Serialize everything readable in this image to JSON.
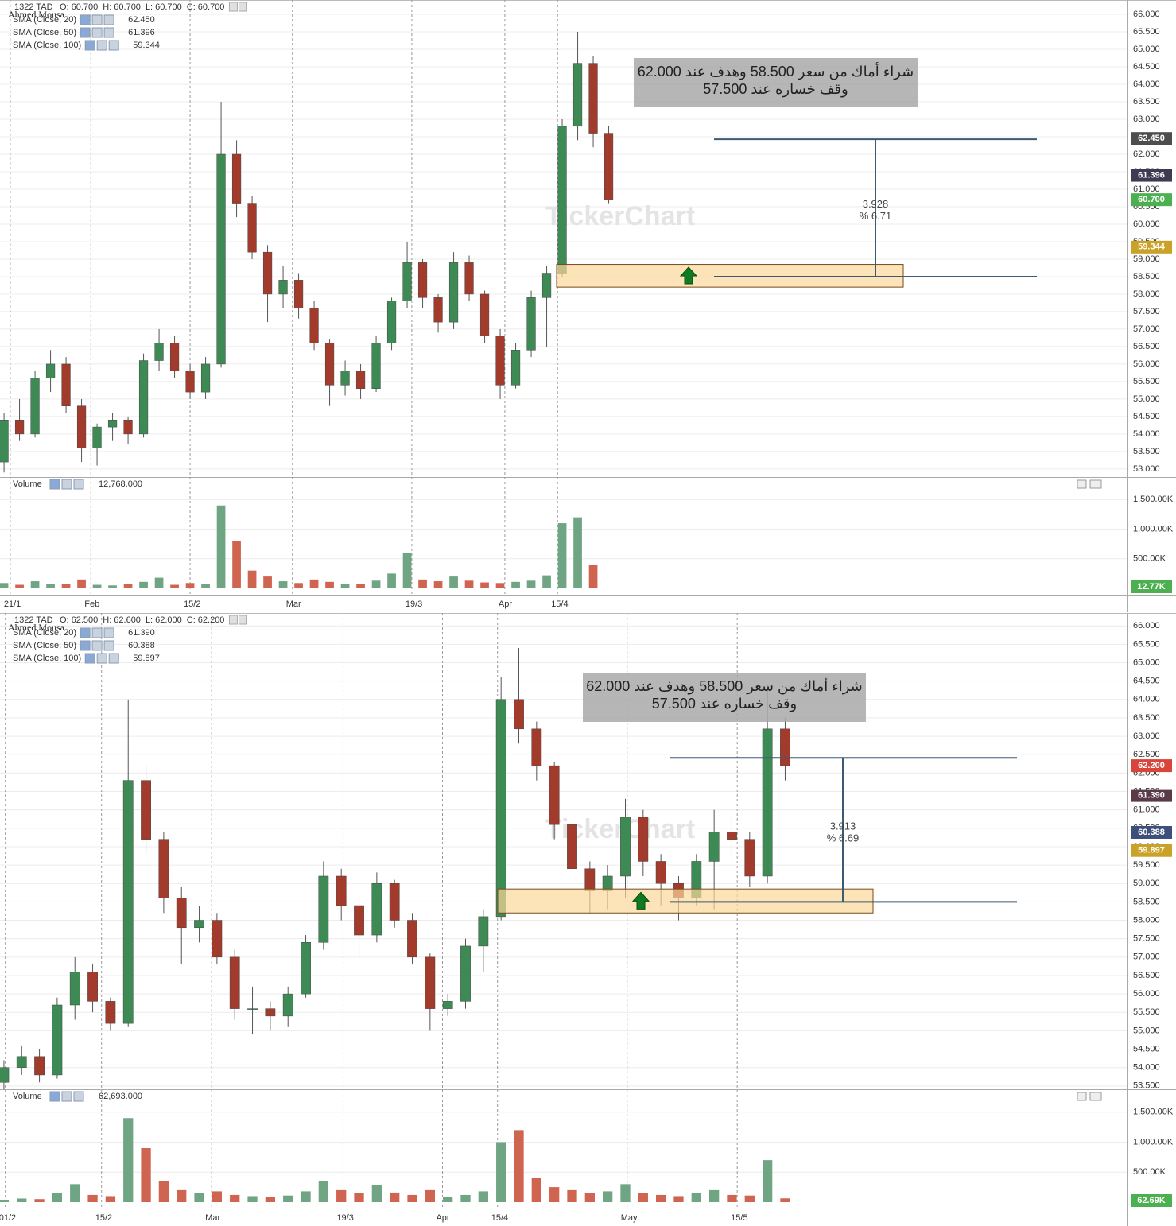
{
  "chart_data": [
    {
      "type": "candlestick",
      "symbol": "1322 TAD",
      "author": "Ahmed Mousa",
      "watermark": "TickerChart",
      "header_color": "#2e8b3e",
      "header": [
        {
          "name": "O:",
          "value": 60.7,
          "label": "60.700"
        },
        {
          "name": "H:",
          "value": 60.7,
          "label": "60.700"
        },
        {
          "name": "L:",
          "value": 60.7,
          "label": "60.700"
        },
        {
          "name": "C:",
          "value": 60.7,
          "label": "60.700"
        }
      ],
      "indicators": [
        {
          "name": "SMA (Close, 20)",
          "value": 62.45,
          "label": "62.450",
          "color": "#4d4d4d"
        },
        {
          "name": "SMA (Close, 50)",
          "value": 61.396,
          "label": "61.396",
          "color": "#3f3a52"
        },
        {
          "name": "SMA (Close, 100)",
          "value": 59.344,
          "label": "59.344",
          "color": "#c9a227"
        }
      ],
      "last_close": {
        "value": 60.7,
        "label": "60.700",
        "color": "#4caf50"
      },
      "annotation": [
        "شراء أماك من سعر 58.500 وهدف عند 62.000",
        "وقف خساره عند 57.500"
      ],
      "entry": 58.5,
      "target": 62.428,
      "zone": [
        58.2,
        58.85
      ],
      "measure": {
        "diff": {
          "value": 3.928,
          "label": "3.928"
        },
        "percent": {
          "value": 6.71,
          "label": "% 6.71"
        }
      },
      "open": [
        53.2,
        54.4,
        54.0,
        55.6,
        56.0,
        54.8,
        53.6,
        54.2,
        54.4,
        54.0,
        56.1,
        56.6,
        55.8,
        55.2,
        56.0,
        62.0,
        60.6,
        59.2,
        58.0,
        58.4,
        57.6,
        56.6,
        55.4,
        55.8,
        55.3,
        56.6,
        57.8,
        58.9,
        57.9,
        57.2,
        58.9,
        58.0,
        56.8,
        55.4,
        56.4,
        57.9,
        58.6,
        62.8,
        64.6,
        62.6
      ],
      "high": [
        54.6,
        55.0,
        55.8,
        56.4,
        56.2,
        55.0,
        54.3,
        54.6,
        54.5,
        56.3,
        57.0,
        56.8,
        56.0,
        56.2,
        63.5,
        62.4,
        60.8,
        59.4,
        58.8,
        58.6,
        57.8,
        56.7,
        56.1,
        56.0,
        56.8,
        57.9,
        59.5,
        59.0,
        58.0,
        59.2,
        59.1,
        58.1,
        57.0,
        56.6,
        58.1,
        58.8,
        63.0,
        65.5,
        64.8,
        62.8
      ],
      "low": [
        52.9,
        53.8,
        53.9,
        55.2,
        54.6,
        53.2,
        53.1,
        53.8,
        53.7,
        53.9,
        55.8,
        55.6,
        55.0,
        55.0,
        55.9,
        60.2,
        59.0,
        57.2,
        57.6,
        57.3,
        56.4,
        54.8,
        55.1,
        55.0,
        55.2,
        56.4,
        57.6,
        57.6,
        56.9,
        57.0,
        57.8,
        56.6,
        55.0,
        55.3,
        56.2,
        56.5,
        58.5,
        62.4,
        62.2,
        60.6
      ],
      "close": [
        54.4,
        54.0,
        55.6,
        56.0,
        54.8,
        53.6,
        54.2,
        54.4,
        54.0,
        56.1,
        56.6,
        55.8,
        55.2,
        56.0,
        62.0,
        60.6,
        59.2,
        58.0,
        58.4,
        57.6,
        56.6,
        55.4,
        55.8,
        55.3,
        56.6,
        57.8,
        58.9,
        57.9,
        57.2,
        58.9,
        58.0,
        56.8,
        55.4,
        56.4,
        57.9,
        58.6,
        62.8,
        64.6,
        62.6,
        60.7
      ],
      "volume": [
        90000,
        60000,
        120000,
        80000,
        70000,
        150000,
        60000,
        50000,
        70000,
        110000,
        180000,
        60000,
        90000,
        70000,
        1400000,
        800000,
        300000,
        200000,
        120000,
        90000,
        150000,
        110000,
        80000,
        70000,
        130000,
        250000,
        600000,
        150000,
        120000,
        200000,
        130000,
        100000,
        90000,
        110000,
        130000,
        220000,
        1100000,
        1200000,
        400000,
        12768
      ],
      "volume_title": "Volume",
      "volume_last": {
        "value": 12768,
        "label": "12,768.000"
      },
      "volume_tag": {
        "value": 12768,
        "label": "12.77K"
      },
      "xlim": [
        -0.26,
        72.46
      ],
      "xticks": [
        {
          "value": 0.4,
          "label": "21/1"
        },
        {
          "value": 5.6,
          "label": "Feb"
        },
        {
          "value": 12.0,
          "label": "15/2"
        },
        {
          "value": 18.6,
          "label": "Mar"
        },
        {
          "value": 26.3,
          "label": "19/3"
        },
        {
          "value": 32.3,
          "label": "Apr"
        },
        {
          "value": 35.7,
          "label": "15/4"
        }
      ],
      "ylim": [
        52.77,
        66.41
      ],
      "yticks": [
        {
          "value": 53,
          "label": "53.000"
        },
        {
          "value": 53.5,
          "label": "53.500"
        },
        {
          "value": 54,
          "label": "54.000"
        },
        {
          "value": 54.5,
          "label": "54.500"
        },
        {
          "value": 55,
          "label": "55.000"
        },
        {
          "value": 55.5,
          "label": "55.500"
        },
        {
          "value": 56,
          "label": "56.000"
        },
        {
          "value": 56.5,
          "label": "56.500"
        },
        {
          "value": 57,
          "label": "57.000"
        },
        {
          "value": 57.5,
          "label": "57.500"
        },
        {
          "value": 58,
          "label": "58.000"
        },
        {
          "value": 58.5,
          "label": "58.500"
        },
        {
          "value": 59,
          "label": "59.000"
        },
        {
          "value": 59.5,
          "label": "59.500"
        },
        {
          "value": 60,
          "label": "60.000"
        },
        {
          "value": 60.5,
          "label": "60.500"
        },
        {
          "value": 61,
          "label": "61.000"
        },
        {
          "value": 61.5,
          "label": "61.500"
        },
        {
          "value": 62,
          "label": "62.000"
        },
        {
          "value": 62.5,
          "label": "62.500"
        },
        {
          "value": 63,
          "label": "63.000"
        },
        {
          "value": 63.5,
          "label": "63.500"
        },
        {
          "value": 64,
          "label": "64.000"
        },
        {
          "value": 64.5,
          "label": "64.500"
        },
        {
          "value": 65,
          "label": "65.000"
        },
        {
          "value": 65.5,
          "label": "65.500"
        },
        {
          "value": 66,
          "label": "66.000"
        }
      ],
      "volume_ylim": [
        0,
        1880000
      ],
      "volume_yticks": [
        {
          "value": 500000,
          "label": "500.00K"
        },
        {
          "value": 1000000,
          "label": "1,000.00K"
        },
        {
          "value": 1500000,
          "label": "1,500.00K"
        }
      ]
    },
    {
      "type": "candlestick",
      "symbol": "1322 TAD",
      "author": "Ahmed Mousa",
      "watermark": "TickerChart",
      "header_color": "#c0392b",
      "header": [
        {
          "name": "O:",
          "value": 62.5,
          "label": "62.500"
        },
        {
          "name": "H:",
          "value": 62.6,
          "label": "62.600"
        },
        {
          "name": "L:",
          "value": 62,
          "label": "62.000"
        },
        {
          "name": "C:",
          "value": 62.2,
          "label": "62.200"
        }
      ],
      "indicators": [
        {
          "name": "SMA (Close, 20)",
          "value": 61.39,
          "label": "61.390",
          "color": "#5a3a48"
        },
        {
          "name": "SMA (Close, 50)",
          "value": 60.388,
          "label": "60.388",
          "color": "#3d4f7a"
        },
        {
          "name": "SMA (Close, 100)",
          "value": 59.897,
          "label": "59.897",
          "color": "#c9a227"
        }
      ],
      "last_close": {
        "value": 62.2,
        "label": "62.200",
        "color": "#d9453a"
      },
      "annotation": [
        "شراء أماك من سعر 58.500 وهدف عند 62.000",
        "وقف خساره عند 57.500"
      ],
      "entry": 58.5,
      "target": 62.413,
      "zone": [
        58.2,
        58.85
      ],
      "measure": {
        "diff": {
          "value": 3.913,
          "label": "3.913"
        },
        "percent": {
          "value": 6.69,
          "label": "% 6.69"
        }
      },
      "open": [
        53.6,
        54.0,
        54.3,
        53.8,
        55.7,
        56.6,
        55.8,
        55.2,
        61.8,
        60.2,
        58.6,
        57.8,
        58.0,
        57.0,
        55.6,
        55.6,
        55.4,
        56.0,
        57.4,
        59.2,
        58.4,
        57.6,
        59.0,
        58.0,
        57.0,
        55.6,
        55.8,
        57.3,
        58.1,
        64.0,
        63.2,
        62.2,
        60.6,
        59.4,
        58.8,
        59.2,
        60.8,
        59.6,
        59.0,
        58.6,
        59.6,
        60.4,
        60.2,
        59.2,
        63.2
      ],
      "high": [
        54.2,
        54.6,
        54.5,
        55.9,
        57.0,
        56.8,
        55.9,
        64.0,
        62.2,
        60.4,
        58.9,
        58.4,
        58.2,
        57.2,
        56.2,
        55.8,
        56.2,
        57.6,
        59.6,
        59.4,
        58.6,
        59.3,
        59.1,
        58.2,
        57.1,
        56.0,
        57.5,
        58.3,
        64.6,
        65.4,
        63.4,
        62.3,
        60.7,
        59.6,
        59.5,
        61.3,
        61.0,
        59.8,
        59.2,
        59.8,
        61.0,
        61.0,
        60.4,
        64.4,
        63.5
      ],
      "low": [
        53.4,
        53.8,
        53.6,
        53.7,
        55.3,
        55.5,
        55.0,
        55.1,
        59.8,
        58.2,
        56.8,
        57.4,
        56.8,
        55.3,
        54.9,
        55.0,
        55.1,
        55.9,
        57.2,
        58.0,
        57.0,
        57.4,
        57.8,
        56.8,
        55.0,
        55.4,
        55.6,
        56.6,
        58.0,
        62.8,
        61.8,
        60.2,
        59.0,
        58.2,
        58.3,
        58.6,
        59.2,
        58.4,
        58.0,
        58.4,
        58.3,
        59.6,
        58.9,
        59.0,
        61.8
      ],
      "close": [
        54.0,
        54.3,
        53.8,
        55.7,
        56.6,
        55.8,
        55.2,
        61.8,
        60.2,
        58.6,
        57.8,
        58.0,
        57.0,
        55.6,
        55.6,
        55.4,
        56.0,
        57.4,
        59.2,
        58.4,
        57.6,
        59.0,
        58.0,
        57.0,
        55.6,
        55.8,
        57.3,
        58.1,
        64.0,
        63.2,
        62.2,
        60.6,
        59.4,
        58.8,
        59.2,
        60.8,
        59.6,
        59.0,
        58.6,
        59.6,
        60.4,
        60.2,
        59.2,
        63.2,
        62.2
      ],
      "volume": [
        40000,
        60000,
        50000,
        150000,
        300000,
        120000,
        100000,
        1400000,
        900000,
        350000,
        200000,
        150000,
        180000,
        120000,
        100000,
        90000,
        110000,
        180000,
        350000,
        200000,
        150000,
        280000,
        160000,
        120000,
        200000,
        80000,
        120000,
        180000,
        1000000,
        1200000,
        400000,
        250000,
        200000,
        150000,
        180000,
        300000,
        150000,
        120000,
        100000,
        150000,
        200000,
        120000,
        110000,
        700000,
        62693
      ],
      "volume_title": "Volume",
      "volume_last": {
        "value": 62693,
        "label": "62,693.000"
      },
      "volume_tag": {
        "value": 62693,
        "label": "62.69K"
      },
      "xlim": [
        -0.22,
        63.28
      ],
      "xticks": [
        {
          "value": 0.08,
          "label": "01/2"
        },
        {
          "value": 5.5,
          "label": "15/2"
        },
        {
          "value": 11.7,
          "label": "Mar"
        },
        {
          "value": 19.1,
          "label": "19/3"
        },
        {
          "value": 24.7,
          "label": "Apr"
        },
        {
          "value": 27.8,
          "label": "15/4"
        },
        {
          "value": 35.1,
          "label": "May"
        },
        {
          "value": 41.3,
          "label": "15/5"
        }
      ],
      "ylim": [
        53.41,
        66.35
      ],
      "yticks": [
        {
          "value": 53.5,
          "label": "53.500"
        },
        {
          "value": 54,
          "label": "54.000"
        },
        {
          "value": 54.5,
          "label": "54.500"
        },
        {
          "value": 55,
          "label": "55.000"
        },
        {
          "value": 55.5,
          "label": "55.500"
        },
        {
          "value": 56,
          "label": "56.000"
        },
        {
          "value": 56.5,
          "label": "56.500"
        },
        {
          "value": 57,
          "label": "57.000"
        },
        {
          "value": 57.5,
          "label": "57.500"
        },
        {
          "value": 58,
          "label": "58.000"
        },
        {
          "value": 58.5,
          "label": "58.500"
        },
        {
          "value": 59,
          "label": "59.000"
        },
        {
          "value": 59.5,
          "label": "59.500"
        },
        {
          "value": 60,
          "label": "60.000"
        },
        {
          "value": 60.5,
          "label": "60.500"
        },
        {
          "value": 61,
          "label": "61.000"
        },
        {
          "value": 61.5,
          "label": "61.500"
        },
        {
          "value": 62,
          "label": "62.000"
        },
        {
          "value": 62.5,
          "label": "62.500"
        },
        {
          "value": 63,
          "label": "63.000"
        },
        {
          "value": 63.5,
          "label": "63.500"
        },
        {
          "value": 64,
          "label": "64.000"
        },
        {
          "value": 64.5,
          "label": "64.500"
        },
        {
          "value": 65,
          "label": "65.000"
        },
        {
          "value": 65.5,
          "label": "65.500"
        },
        {
          "value": 66,
          "label": "66.000"
        }
      ],
      "volume_ylim": [
        0,
        1880000
      ],
      "volume_yticks": [
        {
          "value": 500000,
          "label": "500.00K"
        },
        {
          "value": 1000000,
          "label": "1,000.00K"
        },
        {
          "value": 1500000,
          "label": "1,500.00K"
        }
      ]
    }
  ]
}
